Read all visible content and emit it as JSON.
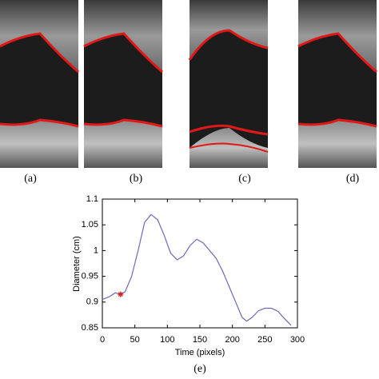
{
  "panels": [
    {
      "label": "(a)"
    },
    {
      "label": "(b)"
    },
    {
      "label": "(c)"
    },
    {
      "label": "(d)"
    }
  ],
  "chart_data": {
    "type": "line",
    "caption": "(e)",
    "xlabel": "Time (pixels)",
    "ylabel": "Diameter (cm)",
    "x": [
      0,
      10,
      20,
      28,
      35,
      45,
      55,
      65,
      75,
      85,
      95,
      105,
      115,
      125,
      135,
      145,
      155,
      165,
      175,
      185,
      195,
      205,
      215,
      222,
      230,
      240,
      250,
      260,
      270,
      280,
      290
    ],
    "series": [
      {
        "color": "#6a6ab8",
        "values": [
          0.905,
          0.91,
          0.918,
          0.915,
          0.92,
          0.95,
          1.0,
          1.055,
          1.07,
          1.06,
          1.03,
          0.995,
          0.982,
          0.99,
          1.01,
          1.022,
          1.015,
          1.0,
          0.985,
          0.96,
          0.93,
          0.9,
          0.87,
          0.863,
          0.87,
          0.883,
          0.888,
          0.888,
          0.882,
          0.868,
          0.855
        ]
      }
    ],
    "highlight": {
      "x": 28,
      "y": 0.915,
      "color": "#d62020"
    },
    "xlim": [
      0,
      300
    ],
    "ylim": [
      0.85,
      1.1
    ],
    "xticks": [
      0,
      50,
      100,
      150,
      200,
      250,
      300
    ],
    "yticks": [
      0.85,
      0.9,
      0.95,
      1,
      1.05,
      1.1
    ]
  }
}
